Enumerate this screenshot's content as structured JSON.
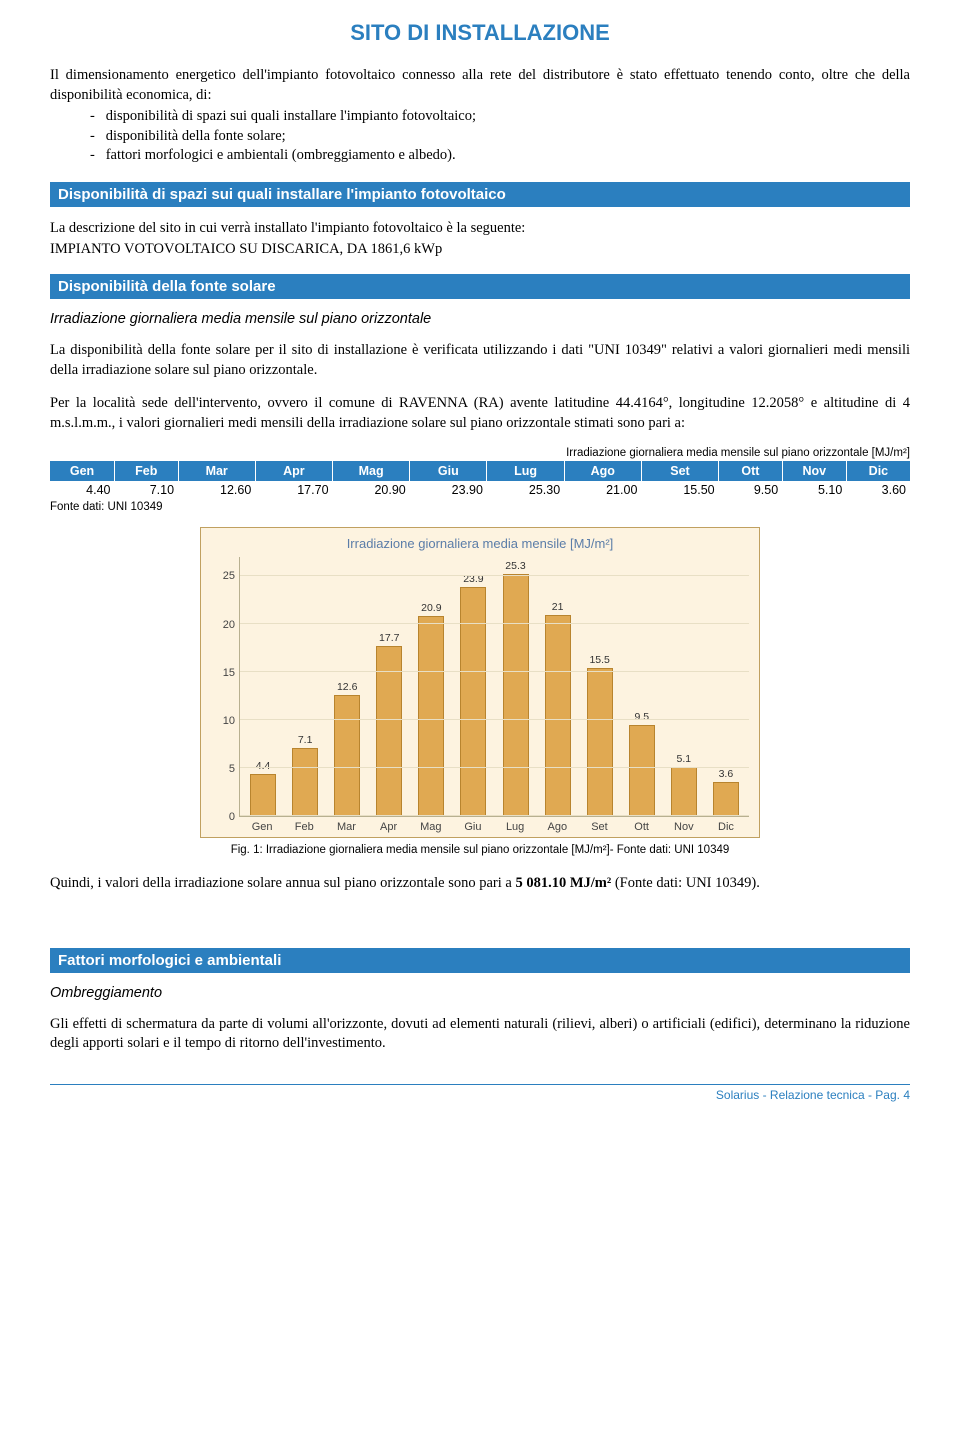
{
  "title": "SITO DI INSTALLAZIONE",
  "intro": "Il dimensionamento energetico dell'impianto fotovoltaico connesso alla rete del distributore è stato effettuato tenendo conto, oltre che della disponibilità economica, di:",
  "bullets": [
    "disponibilità di spazi sui quali installare l'impianto fotovoltaico;",
    "disponibilità della fonte solare;",
    "fattori morfologici e ambientali (ombreggiamento e albedo)."
  ],
  "sections": {
    "spazi": {
      "heading": "Disponibilità di spazi sui quali installare l'impianto fotovoltaico",
      "p1": "La descrizione del sito in cui verrà installato l'impianto fotovoltaico è la seguente:",
      "p2": "IMPIANTO VOTOVOLTAICO SU DISCARICA, DA 1861,6 kWp"
    },
    "fonte": {
      "heading": "Disponibilità della fonte solare",
      "sub": "Irradiazione giornaliera media mensile sul piano orizzontale",
      "p1": "La disponibilità della fonte solare per il sito di installazione è verificata utilizzando i dati \"UNI 10349\" relativi a valori giornalieri medi mensili della irradiazione solare sul piano orizzontale.",
      "p2": "Per la località sede dell'intervento, ovvero il comune di RAVENNA (RA) avente latitudine 44.4164°, longitudine 12.2058° e altitudine di 4 m.s.l.m.m., i valori giornalieri medi mensili della irradiazione solare sul piano orizzontale stimati sono pari a:"
    },
    "fattori": {
      "heading": "Fattori morfologici e ambientali",
      "sub": "Ombreggiamento",
      "p1": "Gli effetti di schermatura da parte di volumi all'orizzonte, dovuti ad elementi naturali (rilievi, alberi) o artificiali (edifici), determinano la riduzione degli apporti solari e il tempo di ritorno dell'investimento."
    }
  },
  "irr_table": {
    "caption": "Irradiazione giornaliera media mensile sul piano orizzontale [MJ/m²]",
    "months": [
      "Gen",
      "Feb",
      "Mar",
      "Apr",
      "Mag",
      "Giu",
      "Lug",
      "Ago",
      "Set",
      "Ott",
      "Nov",
      "Dic"
    ],
    "values": [
      "4.40",
      "7.10",
      "12.60",
      "17.70",
      "20.90",
      "23.90",
      "25.30",
      "21.00",
      "15.50",
      "9.50",
      "5.10",
      "3.60"
    ],
    "fonte": "Fonte dati: UNI 10349"
  },
  "chart": {
    "title": "Irradiazione giornaliera media mensile [MJ/m²]",
    "categories": [
      "Gen",
      "Feb",
      "Mar",
      "Apr",
      "Mag",
      "Giu",
      "Lug",
      "Ago",
      "Set",
      "Ott",
      "Nov",
      "Dic"
    ],
    "values": [
      4.4,
      7.1,
      12.6,
      17.7,
      20.9,
      23.9,
      25.3,
      21,
      15.5,
      9.5,
      5.1,
      3.6
    ],
    "value_labels": [
      "4.4",
      "7.1",
      "12.6",
      "17.7",
      "20.9",
      "23.9",
      "25.3",
      "21",
      "15.5",
      "9.5",
      "5.1",
      "3.6"
    ],
    "ymax": 27,
    "yticks": [
      0,
      5,
      10,
      15,
      20,
      25
    ],
    "bar_color": "#e0a952",
    "bar_border": "#b8842e",
    "bg": "#fdf3e0",
    "grid_color": "#e8dfc5",
    "title_color": "#5b7da8"
  },
  "fig_caption": "Fig. 1: Irradiazione giornaliera media mensile sul piano orizzontale [MJ/m²]- Fonte dati: UNI 10349",
  "quindi_pre": "Quindi, i valori della irradiazione solare annua sul piano orizzontale sono pari a ",
  "quindi_bold": "5 081.10 MJ/m²",
  "quindi_post": " (Fonte dati: UNI 10349).",
  "footer": "Solarius - Relazione tecnica - Pag. 4"
}
